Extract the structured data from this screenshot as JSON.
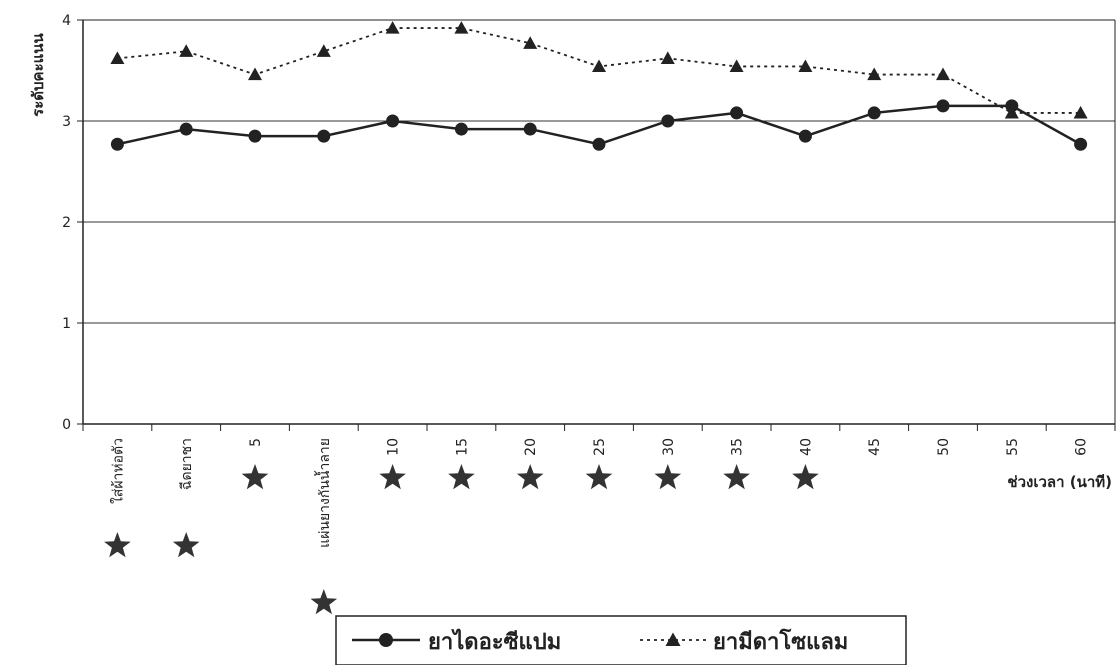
{
  "chart_data": {
    "type": "line",
    "title": "",
    "xlabel": "ช่วงเวลา (นาที)",
    "ylabel": "ระดับคะแนน",
    "ylim": [
      0,
      4
    ],
    "yticks": [
      "0",
      "1",
      "2",
      "3",
      "4"
    ],
    "grid": true,
    "legend_position": "bottom",
    "categories": [
      "ใส่ผ้าห่อตัว",
      "ฉีดยาชา",
      "5",
      "แผ่นยางกันน้ำลาย",
      "10",
      "15",
      "20",
      "25",
      "30",
      "35",
      "40",
      "45",
      "50",
      "55",
      "60"
    ],
    "series": [
      {
        "name": "ยาไดอะซีแปม",
        "marker": "circle",
        "line_style": "solid",
        "values": [
          2.77,
          2.92,
          2.85,
          2.85,
          3.0,
          2.92,
          2.92,
          2.77,
          3.0,
          3.08,
          2.85,
          3.08,
          3.15,
          3.15,
          2.77
        ]
      },
      {
        "name": "ยามีดาโซแลม",
        "marker": "triangle",
        "line_style": "dotted",
        "values": [
          3.62,
          3.69,
          3.46,
          3.69,
          3.92,
          3.92,
          3.77,
          3.54,
          3.62,
          3.54,
          3.54,
          3.46,
          3.46,
          3.08,
          3.08
        ]
      }
    ],
    "star_markers": [
      {
        "category": "ใส่ผ้าห่อตัว",
        "row": 2
      },
      {
        "category": "ฉีดยาชา",
        "row": 2
      },
      {
        "category": "5",
        "row": 1
      },
      {
        "category": "แผ่นยางกันน้ำลาย",
        "row": 3
      },
      {
        "category": "10",
        "row": 1
      },
      {
        "category": "15",
        "row": 1
      },
      {
        "category": "20",
        "row": 1
      },
      {
        "category": "25",
        "row": 1
      },
      {
        "category": "30",
        "row": 1
      },
      {
        "category": "35",
        "row": 1
      },
      {
        "category": "40",
        "row": 1
      }
    ],
    "colors": {
      "line": "#222222",
      "grid": "#333333",
      "star": "#333333"
    }
  }
}
